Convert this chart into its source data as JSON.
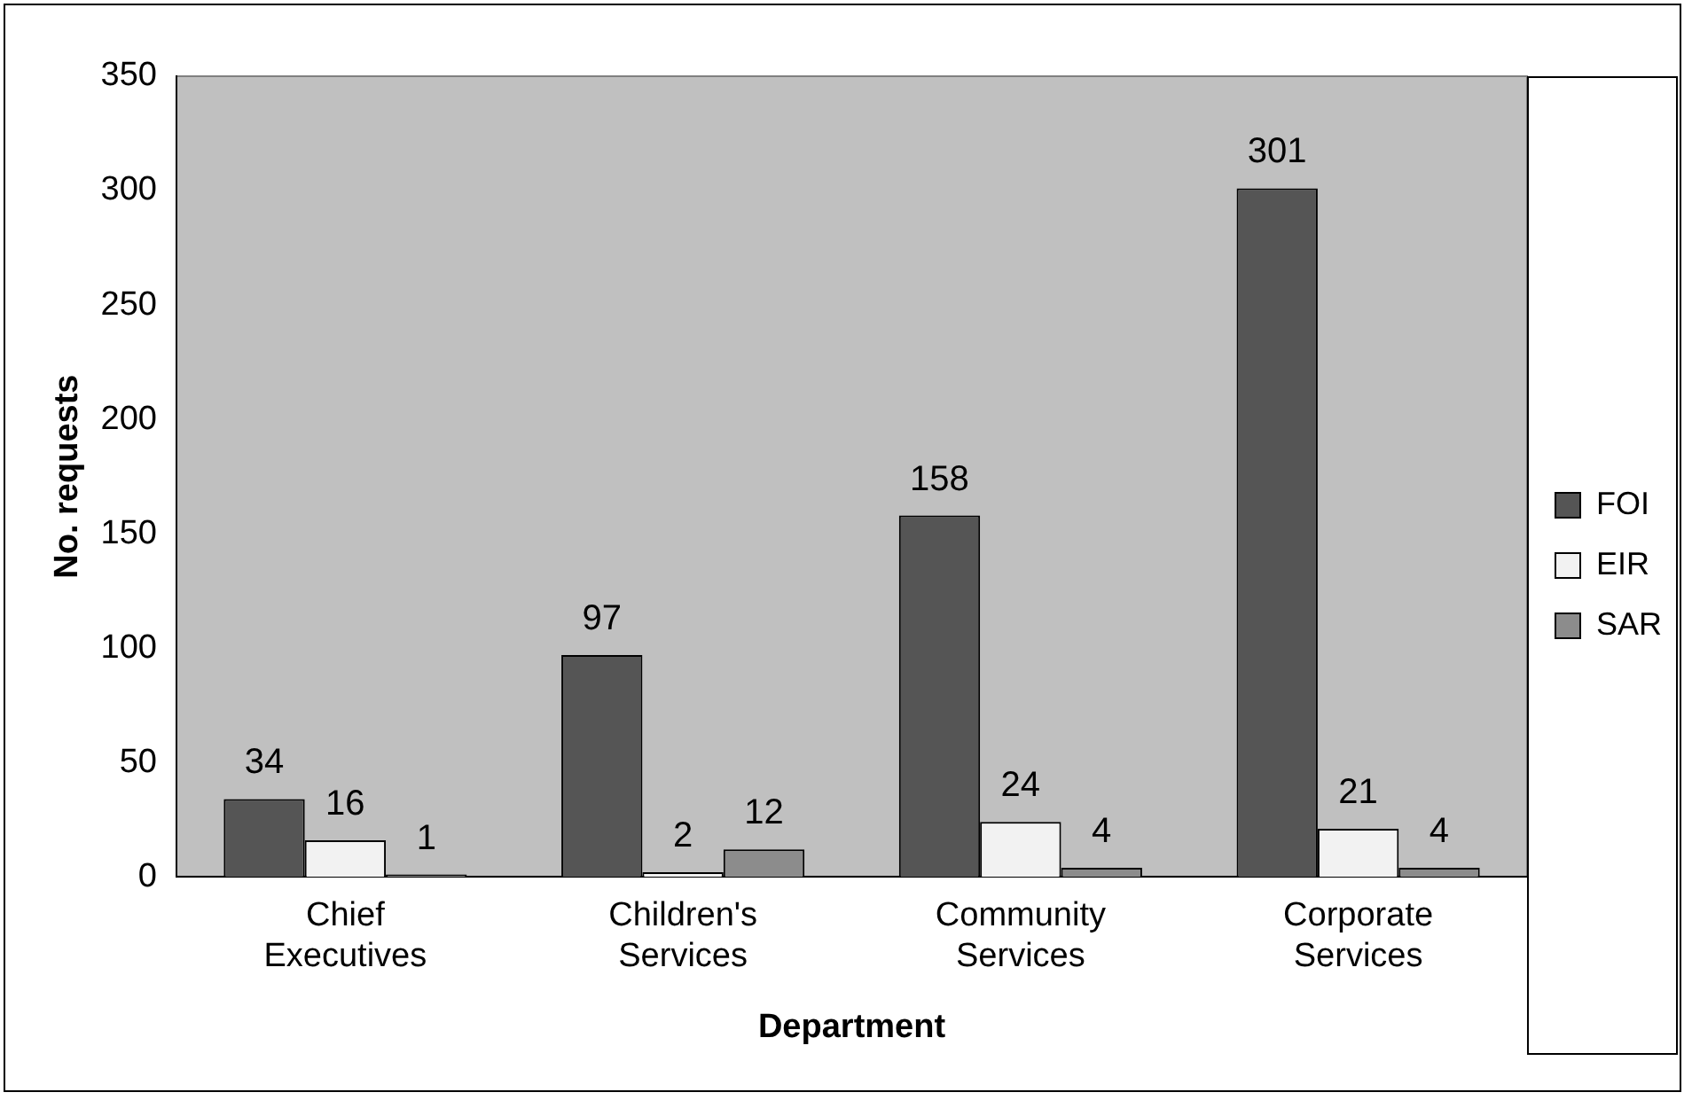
{
  "chart_data": {
    "type": "bar",
    "xlabel": "Department",
    "ylabel": "No. requests",
    "categories": [
      "Chief Executives",
      "Children's Services",
      "Community Services",
      "Corporate Services"
    ],
    "series": [
      {
        "name": "FOI",
        "color": "#555555",
        "values": [
          34,
          97,
          158,
          301
        ]
      },
      {
        "name": "EIR",
        "color": "#f2f2f2",
        "values": [
          16,
          2,
          24,
          21
        ]
      },
      {
        "name": "SAR",
        "color": "#8c8c8c",
        "values": [
          1,
          12,
          4,
          4
        ]
      }
    ],
    "ylim": [
      0,
      350
    ],
    "yticks": [
      0,
      50,
      100,
      150,
      200,
      250,
      300,
      350
    ],
    "grid": false,
    "legend": "right",
    "data_labels": true
  }
}
